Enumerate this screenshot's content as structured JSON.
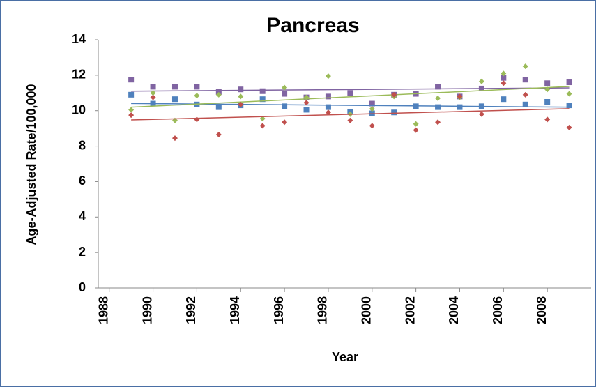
{
  "chart_data": {
    "type": "scatter",
    "title": "Pancreas",
    "x_label": "Year",
    "y_label": "Age-Adjusted Rate/100,000",
    "x": [
      1989,
      1990,
      1991,
      1992,
      1993,
      1994,
      1995,
      1996,
      1997,
      1998,
      1999,
      2000,
      2001,
      2002,
      2003,
      2004,
      2005,
      2006,
      2007,
      2008,
      2009
    ],
    "series": [
      {
        "color": "#8064a2",
        "marker": "square",
        "values": [
          11.75,
          11.35,
          11.35,
          11.35,
          11.05,
          11.2,
          11.1,
          10.95,
          10.75,
          10.8,
          11.0,
          10.4,
          10.9,
          10.95,
          11.35,
          10.8,
          11.25,
          11.85,
          11.75,
          11.55,
          11.6
        ]
      },
      {
        "color": "#4f81bd",
        "marker": "square",
        "values": [
          10.9,
          10.4,
          10.65,
          10.35,
          10.2,
          10.3,
          10.65,
          10.25,
          10.05,
          10.2,
          9.95,
          9.85,
          9.9,
          10.25,
          10.2,
          10.2,
          10.25,
          10.65,
          10.35,
          10.5,
          10.3
        ]
      },
      {
        "color": "#9bbb59",
        "marker": "diamond",
        "values": [
          10.05,
          11.0,
          9.45,
          10.85,
          10.9,
          10.8,
          9.55,
          11.3,
          10.75,
          11.95,
          9.8,
          10.1,
          10.8,
          9.25,
          10.7,
          10.75,
          11.65,
          12.1,
          12.5,
          11.2,
          10.95
        ]
      },
      {
        "color": "#c0504d",
        "marker": "diamond",
        "values": [
          9.75,
          10.75,
          8.45,
          9.5,
          8.65,
          10.35,
          9.15,
          9.35,
          10.45,
          9.9,
          9.45,
          9.15,
          10.9,
          8.9,
          9.35,
          10.8,
          9.8,
          11.55,
          10.9,
          9.5,
          9.05
        ]
      }
    ],
    "trendline": true,
    "xlim": [
      1987.5,
      2010
    ],
    "xticks": [
      1988,
      1990,
      1992,
      1994,
      1996,
      1998,
      2000,
      2002,
      2004,
      2006,
      2008
    ],
    "ylim": [
      0,
      14
    ],
    "yticks": [
      0,
      2,
      4,
      6,
      8,
      10,
      12,
      14
    ]
  }
}
